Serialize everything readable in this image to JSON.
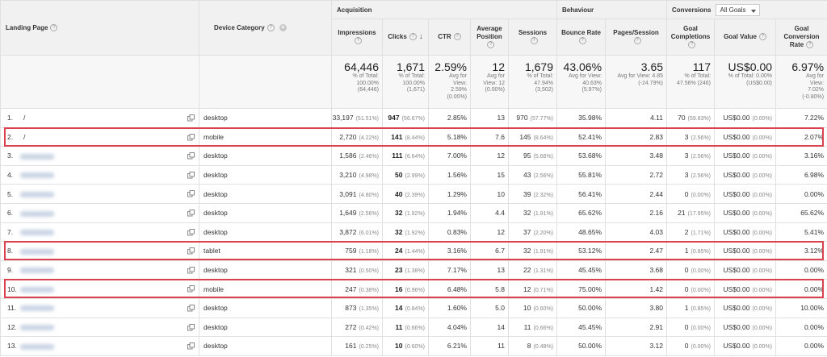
{
  "headers": {
    "landing_page": "Landing Page",
    "device_category": "Device Category",
    "acquisition": "Acquisition",
    "behaviour": "Behaviour",
    "conversions": "Conversions",
    "goals_dropdown": "All Goals",
    "impressions": "Impressions",
    "clicks": "Clicks",
    "ctr": "CTR",
    "avg_position": "Average Position",
    "sessions": "Sessions",
    "bounce_rate": "Bounce Rate",
    "pages_session": "Pages/Session",
    "goal_completions": "Goal Completions",
    "goal_value": "Goal Value",
    "goal_conv_rate_1": "Goal",
    "goal_conv_rate_2": "Conversion",
    "goal_conv_rate_3": "Rate",
    "help_glyph": "?"
  },
  "summary": {
    "impressions": {
      "value": "64,446",
      "l1": "% of Total:",
      "l2": "100.00%",
      "l3": "(64,446)"
    },
    "clicks": {
      "value": "1,671",
      "l1": "% of Total:",
      "l2": "100.00%",
      "l3": "(1,671)"
    },
    "ctr": {
      "value": "2.59%",
      "l1": "Avg for",
      "l2": "View:",
      "l3": "2.59%",
      "l4": "(0.00%)"
    },
    "avg_position": {
      "value": "12",
      "l1": "Avg for",
      "l2": "View: 12",
      "l3": "(0.00%)"
    },
    "sessions": {
      "value": "1,679",
      "l1": "% of Total:",
      "l2": "47.94%",
      "l3": "(3,502)"
    },
    "bounce_rate": {
      "value": "43.06%",
      "l1": "Avg for View:",
      "l2": "40.63%",
      "l3": "(5.97%)"
    },
    "pages_session": {
      "value": "3.65",
      "l1": "Avg for View: 4.85",
      "l2": "(-24.79%)"
    },
    "goal_completions": {
      "value": "117",
      "l1": "% of Total:",
      "l2": "47.56% (246)"
    },
    "goal_value": {
      "value": "US$0.00",
      "l1": "% of Total: 0.00%",
      "l2": "(US$0.00)"
    },
    "goal_conv_rate": {
      "value": "6.97%",
      "l1": "Avg for",
      "l2": "View:",
      "l3": "7.02%",
      "l4": "(-0.80%)"
    }
  },
  "rows": [
    {
      "idx": "1.",
      "path": "/",
      "device": "desktop",
      "impr": "33,197",
      "impr_pct": "(51.51%)",
      "clicks": "947",
      "clicks_pct": "(56.67%)",
      "ctr": "2.85%",
      "pos": "13",
      "sess": "970",
      "sess_pct": "(57.77%)",
      "bounce": "35.98%",
      "pps": "4.11",
      "goals": "70",
      "goals_pct": "(59.83%)",
      "gv": "US$0.00",
      "gv_pct": "(0.00%)",
      "gcr": "7.22%"
    },
    {
      "idx": "2.",
      "path": "/",
      "device": "mobile",
      "impr": "2,720",
      "impr_pct": "(4.22%)",
      "clicks": "141",
      "clicks_pct": "(8.44%)",
      "ctr": "5.18%",
      "pos": "7.6",
      "sess": "145",
      "sess_pct": "(8.64%)",
      "bounce": "52.41%",
      "pps": "2.83",
      "goals": "3",
      "goals_pct": "(2.56%)",
      "gv": "US$0.00",
      "gv_pct": "(0.00%)",
      "gcr": "2.07%"
    },
    {
      "idx": "3.",
      "path": "",
      "device": "desktop",
      "impr": "1,586",
      "impr_pct": "(2.46%)",
      "clicks": "111",
      "clicks_pct": "(6.64%)",
      "ctr": "7.00%",
      "pos": "12",
      "sess": "95",
      "sess_pct": "(5.66%)",
      "bounce": "53.68%",
      "pps": "3.48",
      "goals": "3",
      "goals_pct": "(2.56%)",
      "gv": "US$0.00",
      "gv_pct": "(0.00%)",
      "gcr": "3.16%"
    },
    {
      "idx": "4.",
      "path": "",
      "device": "desktop",
      "impr": "3,210",
      "impr_pct": "(4.98%)",
      "clicks": "50",
      "clicks_pct": "(2.99%)",
      "ctr": "1.56%",
      "pos": "15",
      "sess": "43",
      "sess_pct": "(2.56%)",
      "bounce": "55.81%",
      "pps": "2.72",
      "goals": "3",
      "goals_pct": "(2.56%)",
      "gv": "US$0.00",
      "gv_pct": "(0.00%)",
      "gcr": "6.98%"
    },
    {
      "idx": "5.",
      "path": "",
      "device": "desktop",
      "impr": "3,091",
      "impr_pct": "(4.80%)",
      "clicks": "40",
      "clicks_pct": "(2.39%)",
      "ctr": "1.29%",
      "pos": "10",
      "sess": "39",
      "sess_pct": "(2.32%)",
      "bounce": "56.41%",
      "pps": "2.44",
      "goals": "0",
      "goals_pct": "(0.00%)",
      "gv": "US$0.00",
      "gv_pct": "(0.00%)",
      "gcr": "0.00%"
    },
    {
      "idx": "6.",
      "path": "",
      "device": "desktop",
      "impr": "1,649",
      "impr_pct": "(2.56%)",
      "clicks": "32",
      "clicks_pct": "(1.92%)",
      "ctr": "1.94%",
      "pos": "4.4",
      "sess": "32",
      "sess_pct": "(1.91%)",
      "bounce": "65.62%",
      "pps": "2.16",
      "goals": "21",
      "goals_pct": "(17.95%)",
      "gv": "US$0.00",
      "gv_pct": "(0.00%)",
      "gcr": "65.62%"
    },
    {
      "idx": "7.",
      "path": "",
      "device": "desktop",
      "impr": "3,872",
      "impr_pct": "(6.01%)",
      "clicks": "32",
      "clicks_pct": "(1.92%)",
      "ctr": "0.83%",
      "pos": "12",
      "sess": "37",
      "sess_pct": "(2.20%)",
      "bounce": "48.65%",
      "pps": "4.03",
      "goals": "2",
      "goals_pct": "(1.71%)",
      "gv": "US$0.00",
      "gv_pct": "(0.00%)",
      "gcr": "5.41%"
    },
    {
      "idx": "8.",
      "path": "",
      "device": "tablet",
      "impr": "759",
      "impr_pct": "(1.18%)",
      "clicks": "24",
      "clicks_pct": "(1.44%)",
      "ctr": "3.16%",
      "pos": "6.7",
      "sess": "32",
      "sess_pct": "(1.91%)",
      "bounce": "53.12%",
      "pps": "2.47",
      "goals": "1",
      "goals_pct": "(0.85%)",
      "gv": "US$0.00",
      "gv_pct": "(0.00%)",
      "gcr": "3.12%"
    },
    {
      "idx": "9.",
      "path": "",
      "device": "desktop",
      "impr": "321",
      "impr_pct": "(0.50%)",
      "clicks": "23",
      "clicks_pct": "(1.38%)",
      "ctr": "7.17%",
      "pos": "13",
      "sess": "22",
      "sess_pct": "(1.31%)",
      "bounce": "45.45%",
      "pps": "3.68",
      "goals": "0",
      "goals_pct": "(0.00%)",
      "gv": "US$0.00",
      "gv_pct": "(0.00%)",
      "gcr": "0.00%"
    },
    {
      "idx": "10.",
      "path": "",
      "device": "mobile",
      "impr": "247",
      "impr_pct": "(0.38%)",
      "clicks": "16",
      "clicks_pct": "(0.96%)",
      "ctr": "6.48%",
      "pos": "5.8",
      "sess": "12",
      "sess_pct": "(0.71%)",
      "bounce": "75.00%",
      "pps": "1.42",
      "goals": "0",
      "goals_pct": "(0.00%)",
      "gv": "US$0.00",
      "gv_pct": "(0.00%)",
      "gcr": "0.00%"
    },
    {
      "idx": "11.",
      "path": "",
      "device": "desktop",
      "impr": "873",
      "impr_pct": "(1.35%)",
      "clicks": "14",
      "clicks_pct": "(0.84%)",
      "ctr": "1.60%",
      "pos": "5.0",
      "sess": "10",
      "sess_pct": "(0.60%)",
      "bounce": "50.00%",
      "pps": "3.80",
      "goals": "1",
      "goals_pct": "(0.85%)",
      "gv": "US$0.00",
      "gv_pct": "(0.00%)",
      "gcr": "10.00%"
    },
    {
      "idx": "12.",
      "path": "",
      "device": "desktop",
      "impr": "272",
      "impr_pct": "(0.42%)",
      "clicks": "11",
      "clicks_pct": "(0.66%)",
      "ctr": "4.04%",
      "pos": "14",
      "sess": "11",
      "sess_pct": "(0.66%)",
      "bounce": "45.45%",
      "pps": "2.91",
      "goals": "0",
      "goals_pct": "(0.00%)",
      "gv": "US$0.00",
      "gv_pct": "(0.00%)",
      "gcr": "0.00%"
    },
    {
      "idx": "13.",
      "path": "",
      "device": "desktop",
      "impr": "161",
      "impr_pct": "(0.25%)",
      "clicks": "10",
      "clicks_pct": "(0.60%)",
      "ctr": "6.21%",
      "pos": "11",
      "sess": "8",
      "sess_pct": "(0.48%)",
      "bounce": "50.00%",
      "pps": "3.12",
      "goals": "0",
      "goals_pct": "(0.00%)",
      "gv": "US$0.00",
      "gv_pct": "(0.00%)",
      "gcr": "0.00%"
    }
  ],
  "highlight_color": "#d9434f"
}
